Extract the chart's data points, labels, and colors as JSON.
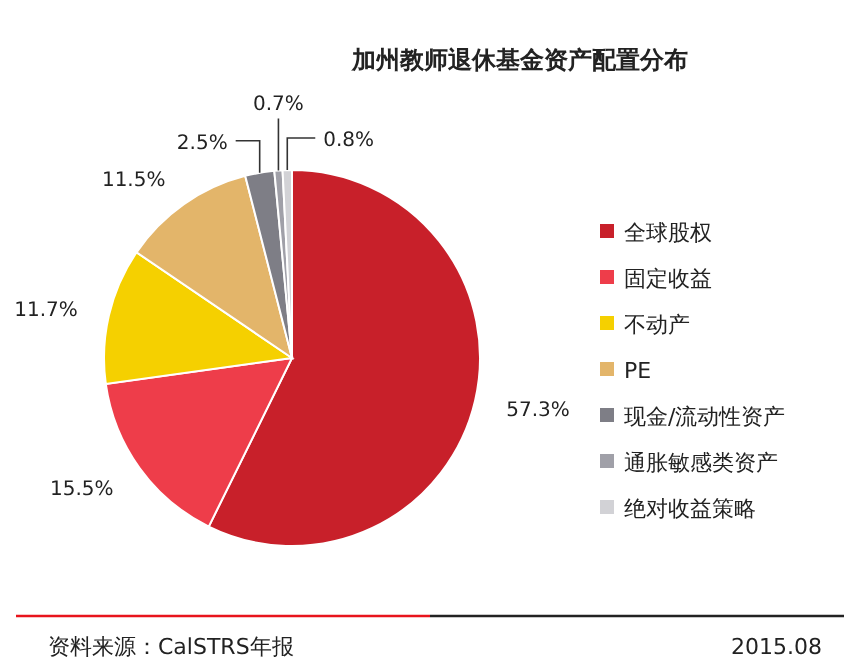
{
  "chart_data": {
    "type": "pie",
    "title": "加州教师退休基金资产配置分布",
    "categories": [
      "全球股权",
      "固定收益",
      "不动产",
      "PE",
      "现金/流动性资产",
      "通胀敏感类资产",
      "绝对收益策略"
    ],
    "values": [
      57.3,
      15.5,
      11.7,
      11.5,
      2.5,
      0.7,
      0.8
    ],
    "value_labels": [
      "57.3%",
      "15.5%",
      "11.7%",
      "11.5%",
      "2.5%",
      "0.7%",
      "0.8%"
    ],
    "colors": [
      "#c8202a",
      "#ee3d4a",
      "#f5d000",
      "#e3b56a",
      "#7e7e86",
      "#a0a0a8",
      "#d2d2d6"
    ],
    "legend": "right",
    "annotations": [
      "资料来源：CalSTRS年报",
      "2015.08"
    ]
  }
}
